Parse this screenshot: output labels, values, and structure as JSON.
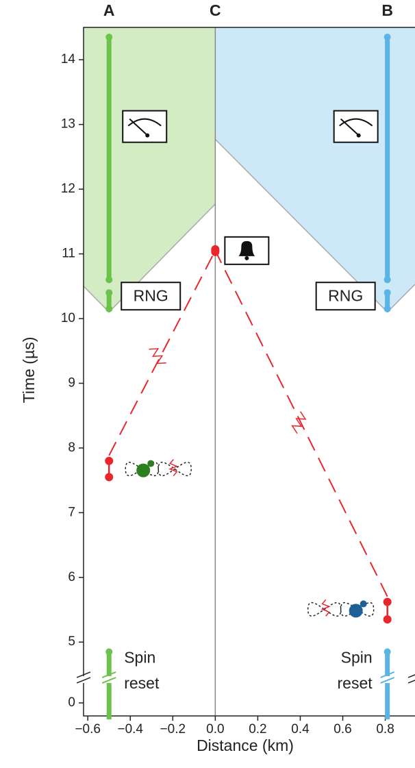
{
  "chart_data": {
    "type": "spacetime",
    "x_label": "Distance (km)",
    "y_label": "Time (µs)",
    "xlim": [
      -0.62,
      0.94
    ],
    "ylim": [
      0,
      14.5
    ],
    "ybreak": [
      0.35,
      4.41
    ],
    "xticks": [
      {
        "value": -0.6,
        "label": "−0.6"
      },
      {
        "value": -0.4,
        "label": "−0.4"
      },
      {
        "value": -0.2,
        "label": "−0.2"
      },
      {
        "value": 0,
        "label": "0.0"
      },
      0.2,
      0.4,
      0.6,
      0.8
    ],
    "yticks": [
      0,
      5,
      6,
      7,
      8,
      9,
      10,
      11,
      12,
      13,
      14
    ],
    "stations": [
      {
        "name": "A",
        "color": "#6cc24a",
        "region_color": "#d3ecc4",
        "x": -0.5,
        "reset": [
          0,
          4.85
        ],
        "reset_label": [
          "Spin",
          "reset"
        ],
        "emission": [
          7.55,
          7.8
        ],
        "rng": [
          10.15,
          10.4
        ],
        "rng_label": "RNG",
        "measure": [
          10.6,
          14.35
        ],
        "cone_apex": 10.1,
        "cone_at_c": 11.77
      },
      {
        "name": "B",
        "color": "#5ab4e5",
        "region_color": "#cde8f7",
        "x": 0.81,
        "reset": [
          0,
          4.85
        ],
        "reset_label": [
          "Spin",
          "reset"
        ],
        "emission": [
          5.35,
          5.62
        ],
        "rng": [
          10.15,
          10.4
        ],
        "rng_label": "RNG",
        "measure": [
          10.6,
          14.35
        ],
        "cone_apex": 10.1,
        "cone_at_c": 12.77
      }
    ],
    "center": {
      "name": "C",
      "color": "#e8262b",
      "x": 0,
      "event": 11.05
    }
  }
}
